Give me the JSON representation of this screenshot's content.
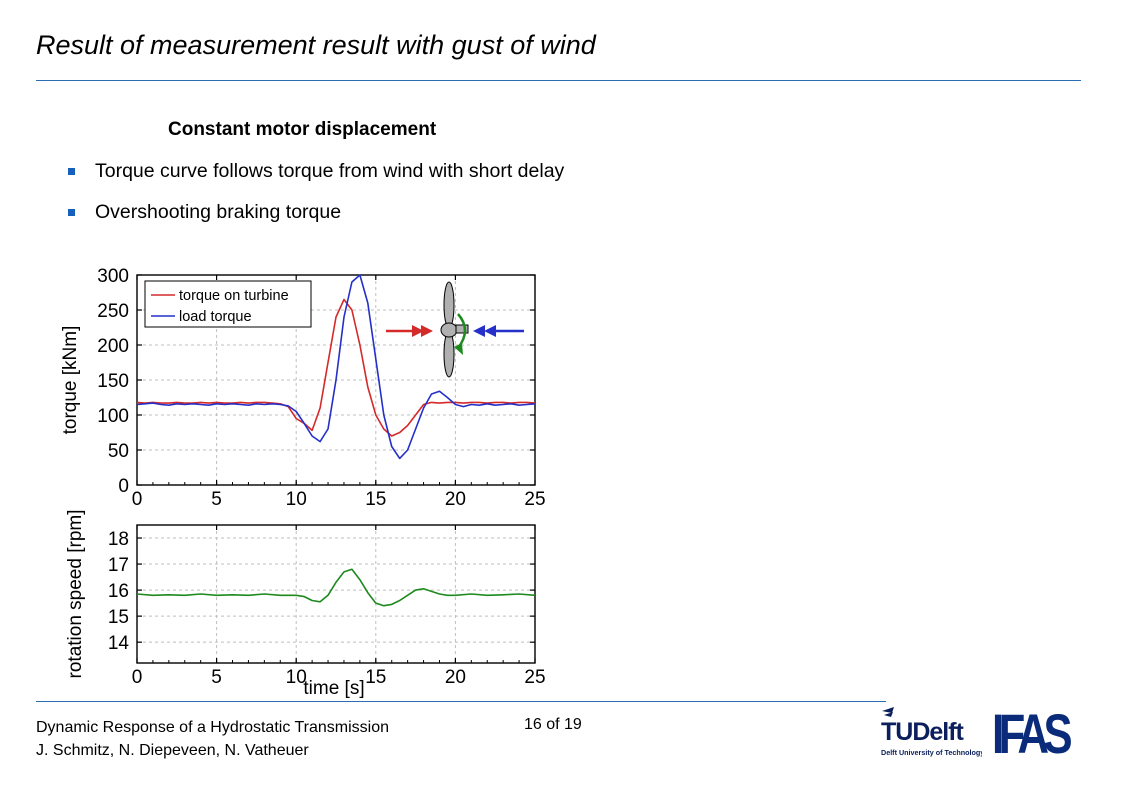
{
  "slide": {
    "title": "Result of measurement result with gust of wind",
    "subheading": "Constant motor displacement",
    "bullets": [
      "Torque curve follows torque from wind with short delay",
      "Overshooting braking torque"
    ]
  },
  "footer": {
    "line1": "Dynamic Response of a Hydrostatic Transmission",
    "line2": "J. Schmitz, N. Diepeveen, N. Vatheuer",
    "page": "16 of 19",
    "logo_tud_text": "TUDelft",
    "logo_tud_tagline": "Delft University of Technology",
    "logo_ifas_text": "IFAS"
  },
  "colors": {
    "accent": "#1560bd",
    "rule": "#2a6db0",
    "torque_on_turbine": "#d42a2a",
    "load_torque": "#2530c8",
    "rotation_speed": "#1e8a1e"
  },
  "chart_data": [
    {
      "type": "line",
      "title": "",
      "xlabel": "",
      "ylabel": "torque [kNm]",
      "xlim": [
        0,
        25
      ],
      "ylim": [
        0,
        300
      ],
      "xticks": [
        0,
        5,
        10,
        15,
        20,
        25
      ],
      "yticks": [
        0,
        50,
        100,
        150,
        200,
        250,
        300
      ],
      "grid": true,
      "legend": "top-left",
      "series": [
        {
          "name": "torque on turbine",
          "color": "#d42a2a",
          "x": [
            0,
            0.5,
            1,
            1.5,
            2,
            2.5,
            3,
            3.5,
            4,
            4.5,
            5,
            5.5,
            6,
            6.5,
            7,
            7.5,
            8,
            8.5,
            9,
            9.5,
            10,
            10.5,
            11,
            11.5,
            12,
            12.5,
            13,
            13.5,
            14,
            14.5,
            15,
            15.5,
            16,
            16.5,
            17,
            17.5,
            18,
            18.5,
            19,
            19.5,
            20,
            20.5,
            21,
            21.5,
            22,
            22.5,
            23,
            23.5,
            24,
            24.5,
            25
          ],
          "y": [
            118,
            117,
            118,
            117,
            117,
            118,
            117,
            117,
            118,
            117,
            118,
            117,
            117,
            118,
            117,
            118,
            118,
            117,
            116,
            112,
            95,
            88,
            78,
            110,
            175,
            240,
            265,
            250,
            200,
            140,
            100,
            80,
            70,
            75,
            85,
            100,
            115,
            118,
            117,
            118,
            118,
            117,
            118,
            118,
            117,
            118,
            118,
            117,
            118,
            118,
            117
          ]
        },
        {
          "name": "load torque",
          "color": "#2530c8",
          "x": [
            0,
            0.5,
            1,
            1.5,
            2,
            2.5,
            3,
            3.5,
            4,
            4.5,
            5,
            5.5,
            6,
            6.5,
            7,
            7.5,
            8,
            8.5,
            9,
            9.5,
            10,
            10.5,
            11,
            11.5,
            12,
            12.5,
            13,
            13.5,
            14,
            14.5,
            15,
            15.5,
            16,
            16.5,
            17,
            17.5,
            18,
            18.5,
            19,
            19.5,
            20,
            20.5,
            21,
            21.5,
            22,
            22.5,
            23,
            23.5,
            24,
            24.5,
            25
          ],
          "y": [
            115,
            116,
            117,
            115,
            114,
            116,
            115,
            116,
            115,
            114,
            116,
            115,
            116,
            115,
            114,
            116,
            115,
            116,
            115,
            113,
            105,
            88,
            70,
            62,
            80,
            150,
            240,
            290,
            300,
            260,
            180,
            100,
            55,
            38,
            50,
            80,
            110,
            130,
            134,
            125,
            115,
            112,
            115,
            114,
            116,
            114,
            115,
            116,
            114,
            115,
            116
          ]
        }
      ]
    },
    {
      "type": "line",
      "title": "",
      "xlabel": "time [s]",
      "ylabel": "rotation speed [rpm]",
      "xlim": [
        0,
        25
      ],
      "ylim": [
        13.2,
        18.5
      ],
      "xticks": [
        0,
        5,
        10,
        15,
        20,
        25
      ],
      "yticks": [
        14,
        15,
        16,
        17,
        18
      ],
      "grid": true,
      "series": [
        {
          "color": "#1e8a1e",
          "x": [
            0,
            1,
            2,
            3,
            4,
            5,
            6,
            7,
            8,
            9,
            10,
            10.5,
            11,
            11.5,
            12,
            12.5,
            13,
            13.5,
            14,
            14.5,
            15,
            15.5,
            16,
            16.5,
            17,
            17.5,
            18,
            18.5,
            19,
            19.5,
            20,
            21,
            22,
            23,
            24,
            25
          ],
          "y": [
            15.85,
            15.8,
            15.82,
            15.8,
            15.85,
            15.8,
            15.82,
            15.8,
            15.85,
            15.8,
            15.8,
            15.75,
            15.6,
            15.55,
            15.8,
            16.3,
            16.7,
            16.8,
            16.4,
            15.9,
            15.5,
            15.4,
            15.45,
            15.6,
            15.8,
            16.0,
            16.05,
            15.95,
            15.85,
            15.8,
            15.8,
            15.85,
            15.8,
            15.82,
            15.85,
            15.8
          ]
        }
      ]
    }
  ]
}
